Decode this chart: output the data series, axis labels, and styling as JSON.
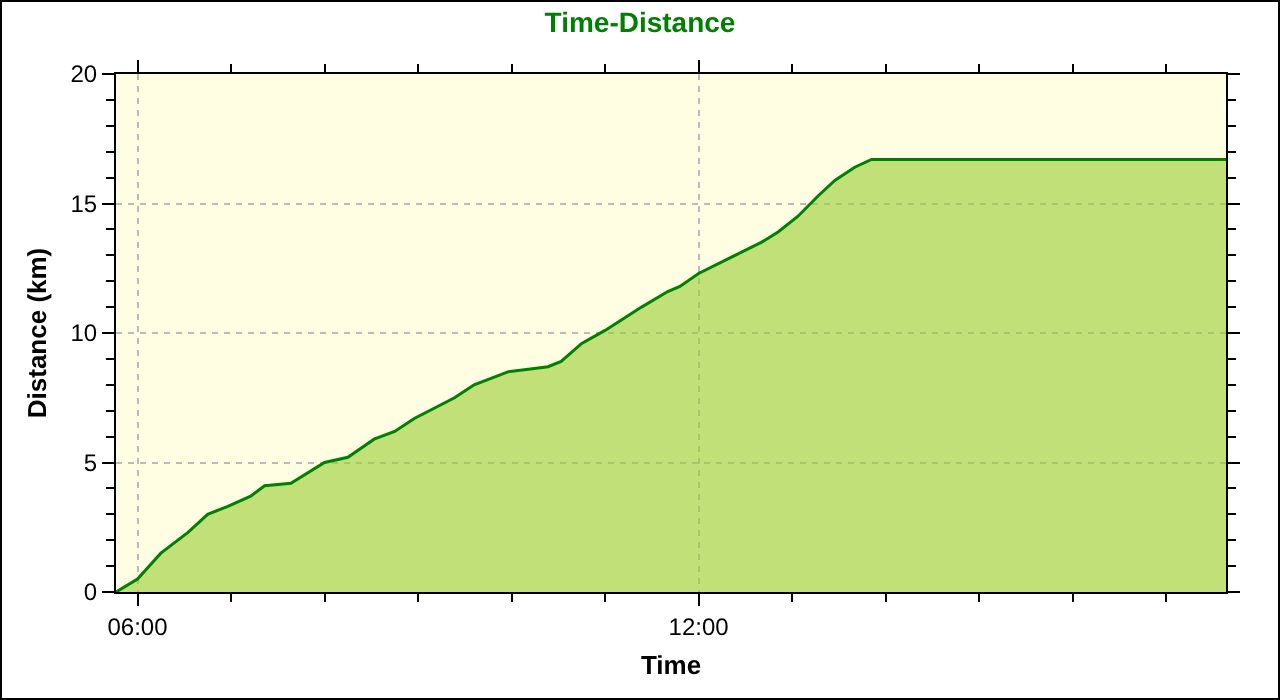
{
  "chart_data": {
    "type": "area",
    "title": "Time-Distance",
    "xlabel": "Time",
    "ylabel": "Distance (km)",
    "x": [
      5.77,
      6.0,
      6.25,
      6.54,
      6.75,
      6.96,
      7.21,
      7.36,
      7.64,
      8.0,
      8.25,
      8.53,
      8.75,
      8.96,
      9.39,
      9.6,
      9.96,
      10.18,
      10.39,
      10.53,
      10.75,
      11.0,
      11.39,
      11.67,
      11.8,
      12.0,
      12.39,
      12.67,
      12.85,
      13.06,
      13.28,
      13.46,
      13.67,
      13.85,
      17.64
    ],
    "series": [
      {
        "color": "#008000",
        "values": [
          0,
          0.5,
          1.5,
          2.3,
          3.0,
          3.3,
          3.7,
          4.1,
          4.2,
          5.0,
          5.2,
          5.9,
          6.2,
          6.7,
          7.5,
          8.0,
          8.5,
          8.6,
          8.7,
          8.9,
          9.6,
          10.1,
          11.0,
          11.6,
          11.8,
          12.3,
          13.0,
          13.5,
          13.9,
          14.5,
          15.3,
          15.9,
          16.4,
          16.7,
          16.7
        ]
      }
    ],
    "xlim": [
      5.77,
      17.64
    ],
    "xticks": [
      {
        "value": 6,
        "label": "06:00"
      },
      {
        "value": 12,
        "label": "12:00"
      }
    ],
    "ylim": [
      0,
      20
    ],
    "yticks": [
      0,
      5,
      10,
      15,
      20
    ],
    "grid": true,
    "marker": "none",
    "line_style": "solid"
  }
}
